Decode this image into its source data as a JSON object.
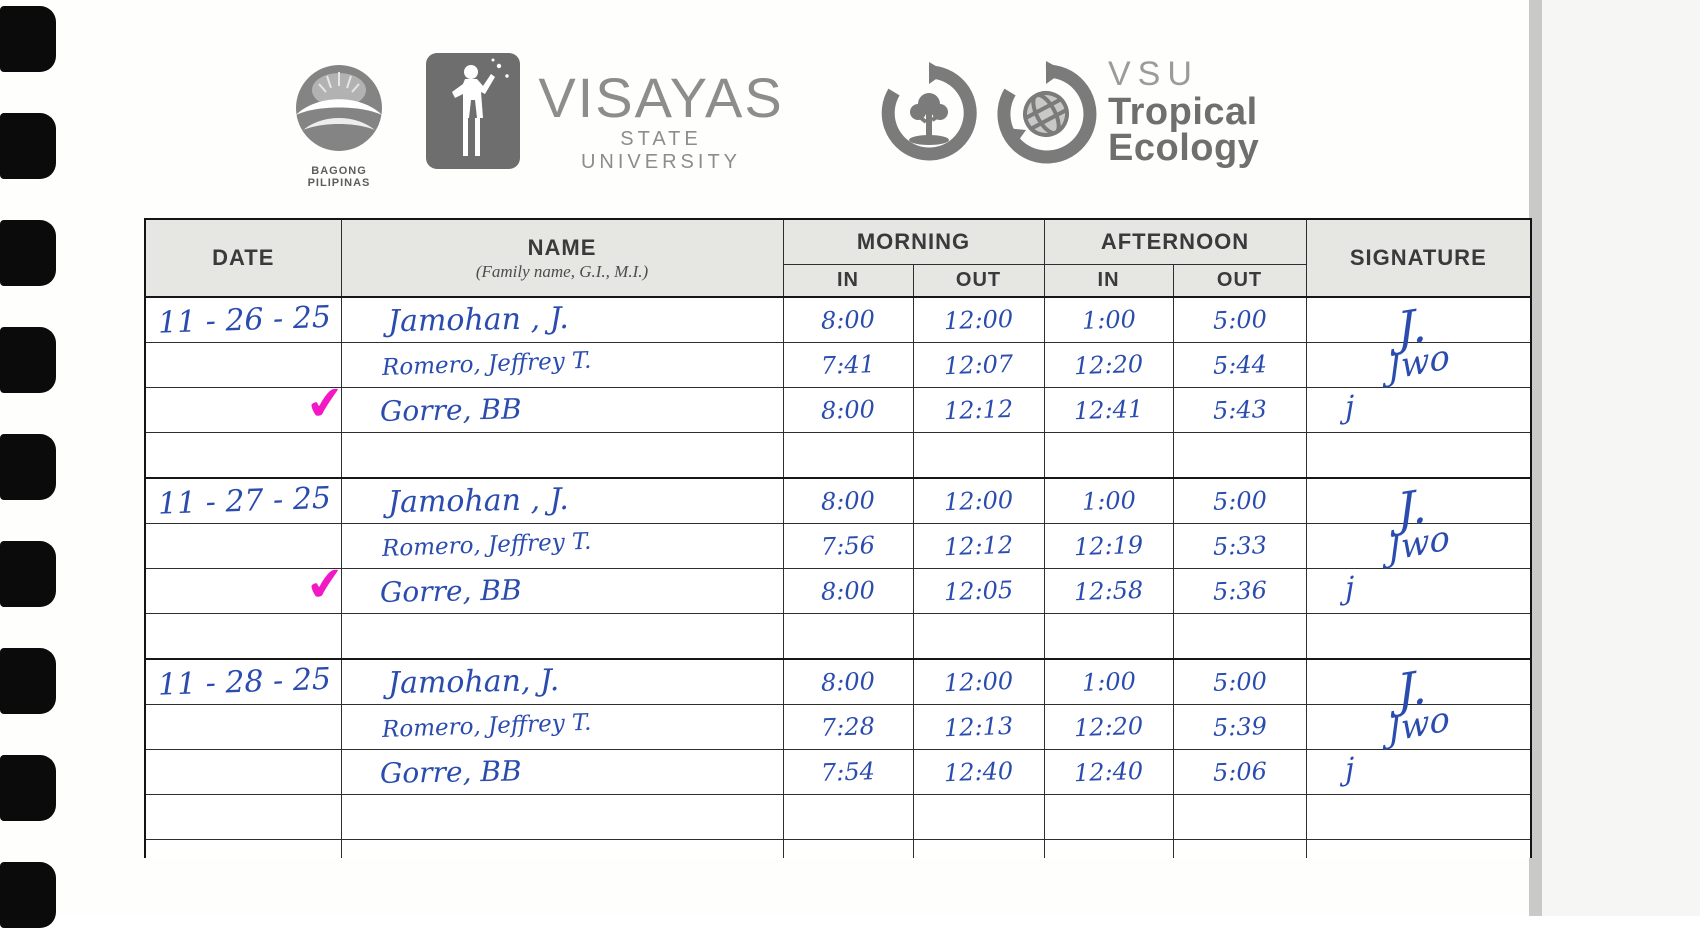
{
  "colors": {
    "ink_blue": "#2a4cae",
    "check_magenta": "#f318c5",
    "header_gray": "#e6e6e3",
    "logo_gray": "#7d7d7d"
  },
  "glyphs": {
    "check": "✔"
  },
  "header": {
    "bagong_caption": "BAGONG PILIPINAS",
    "university": "VISAYAS",
    "university_sub": "STATE UNIVERSITY",
    "eco_org": "VSU",
    "eco_line1": "Tropical",
    "eco_line2": "Ecology"
  },
  "table": {
    "headers": {
      "date": "DATE",
      "name": "NAME",
      "name_sub": "(Family name, G.I., M.I.)",
      "morning": "MORNING",
      "afternoon": "AFTERNOON",
      "in": "IN",
      "out": "OUT",
      "signature": "SIGNATURE"
    },
    "blocks": [
      {
        "date": "11 - 26 - 25",
        "rows": [
          {
            "name": "Jamohan , J.",
            "times": [
              "8:00",
              "12:00",
              "1:00",
              "5:00"
            ],
            "checked": false,
            "sig": "J."
          },
          {
            "name": "Romero, Jeffrey T.",
            "times": [
              "7:41",
              "12:07",
              "12:20",
              "5:44"
            ],
            "checked": false,
            "sig": "Jwo"
          },
          {
            "name": "Gorre, BB",
            "times": [
              "8:00",
              "12:12",
              "12:41",
              "5:43"
            ],
            "checked": true,
            "sig": "j"
          }
        ]
      },
      {
        "date": "11 - 27 - 25",
        "rows": [
          {
            "name": "Jamohan , J.",
            "times": [
              "8:00",
              "12:00",
              "1:00",
              "5:00"
            ],
            "checked": false,
            "sig": "J."
          },
          {
            "name": "Romero, Jeffrey T.",
            "times": [
              "7:56",
              "12:12",
              "12:19",
              "5:33"
            ],
            "checked": false,
            "sig": "Jwo"
          },
          {
            "name": "Gorre, BB",
            "times": [
              "8:00",
              "12:05",
              "12:58",
              "5:36"
            ],
            "checked": true,
            "sig": "j"
          }
        ]
      },
      {
        "date": "11 - 28 - 25",
        "rows": [
          {
            "name": "Jamohan, J.",
            "times": [
              "8:00",
              "12:00",
              "1:00",
              "5:00"
            ],
            "checked": false,
            "sig": "J."
          },
          {
            "name": "Romero, Jeffrey T.",
            "times": [
              "7:28",
              "12:13",
              "12:20",
              "5:39"
            ],
            "checked": false,
            "sig": "Jwo"
          },
          {
            "name": "Gorre, BB",
            "times": [
              "7:54",
              "12:40",
              "12:40",
              "5:06"
            ],
            "checked": false,
            "sig": "j"
          }
        ]
      }
    ]
  }
}
